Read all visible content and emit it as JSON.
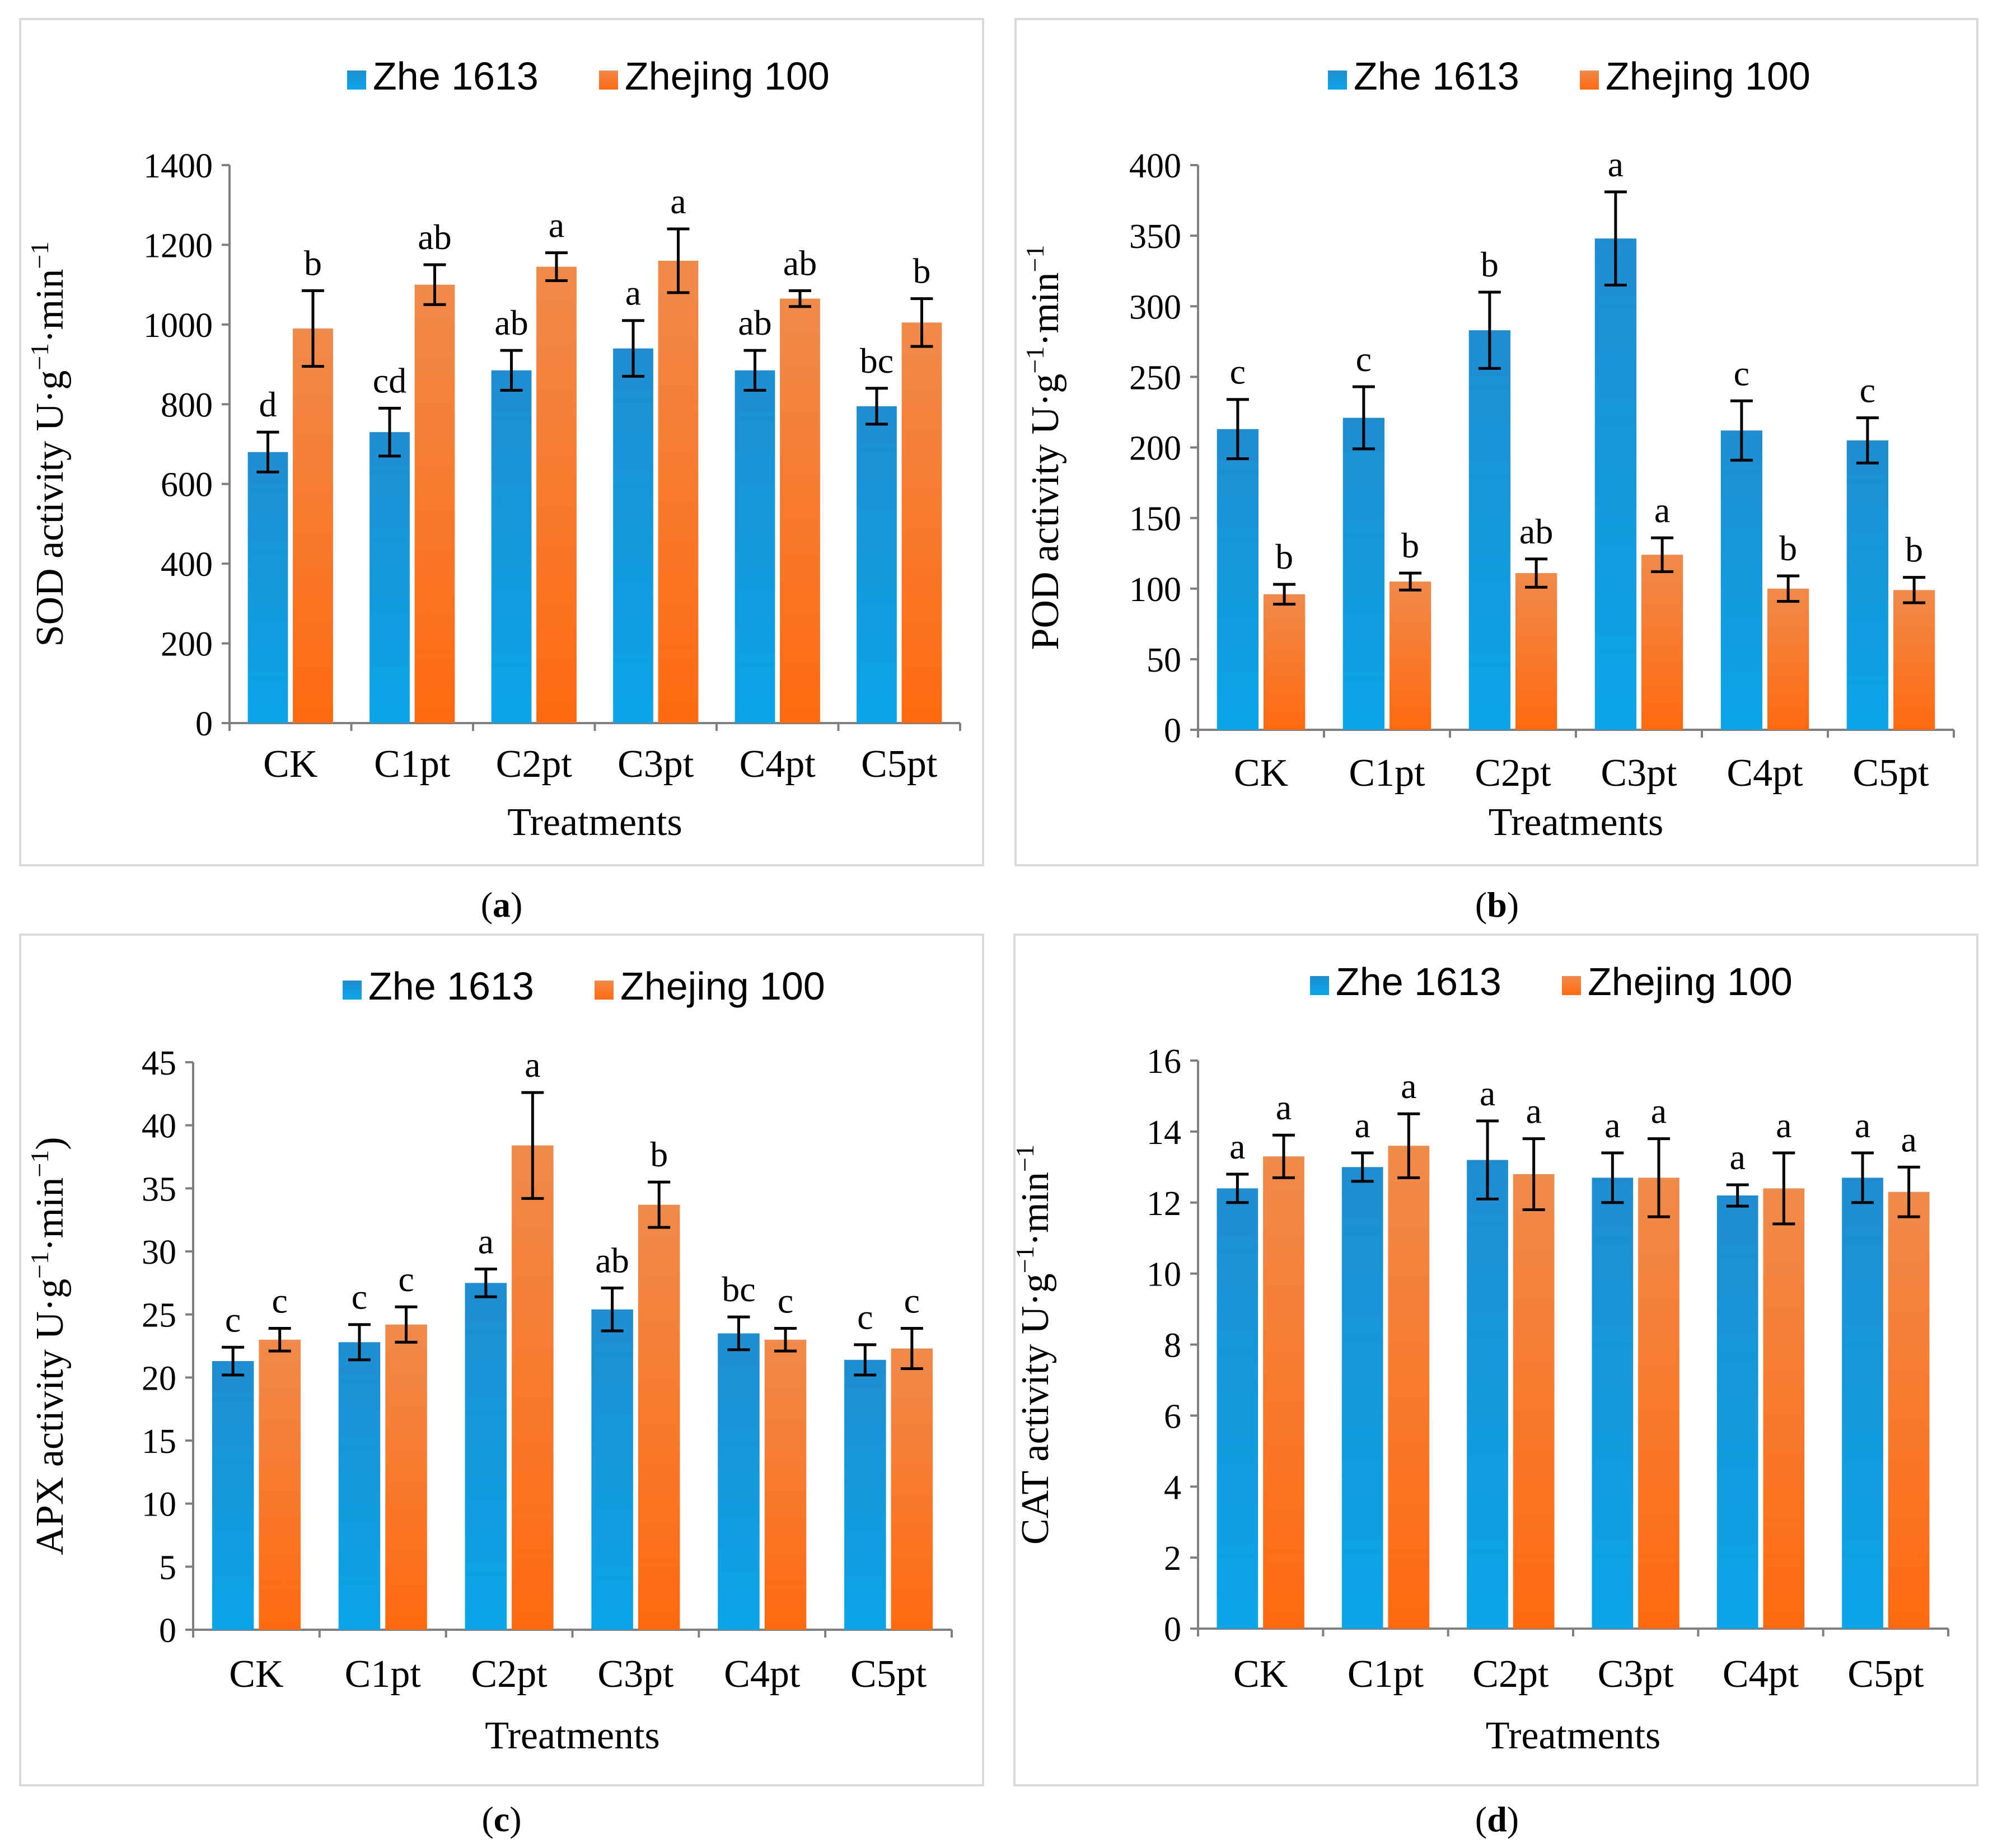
{
  "colors": {
    "series_1": "#1e90d6",
    "series_1_light": "#46b6ee",
    "series_2": "#ff6a1a",
    "series_2_light": "#ffa060",
    "axis": "#7f7f7f",
    "frame": "#d9d9d9"
  },
  "chart_data": [
    {
      "id": "a",
      "type": "bar",
      "panel_label": "a",
      "ylabel_main": "SOD  activity U·g",
      "ylabel_sup1": "−1",
      "ylabel_mid": "·min",
      "ylabel_sup2": "−1",
      "ylabel_end": "",
      "xlabel": "Treatments",
      "categories": [
        "CK",
        "C1pt",
        "C2pt",
        "C3pt",
        "C4pt",
        "C5pt"
      ],
      "ylim": [
        0,
        1400
      ],
      "yticks": [
        0,
        200,
        400,
        600,
        800,
        1000,
        1200,
        1400
      ],
      "legend_position": "top",
      "series": [
        {
          "name": "Zhe 1613",
          "values": [
            680,
            730,
            885,
            940,
            885,
            795
          ],
          "errors": [
            50,
            60,
            50,
            70,
            50,
            45
          ],
          "letters": [
            "d",
            "cd",
            "ab",
            "a",
            "ab",
            "bc"
          ]
        },
        {
          "name": "Zhejing 100",
          "values": [
            990,
            1100,
            1145,
            1160,
            1065,
            1005
          ],
          "errors": [
            95,
            50,
            35,
            80,
            20,
            60
          ],
          "letters": [
            "b",
            "ab",
            "a",
            "a",
            "ab",
            "b"
          ]
        }
      ]
    },
    {
      "id": "b",
      "type": "bar",
      "panel_label": "b",
      "ylabel_main": "POD  activity U·g",
      "ylabel_sup1": "−1",
      "ylabel_mid": "·min",
      "ylabel_sup2": "−1",
      "ylabel_end": "",
      "xlabel": "Treatments",
      "categories": [
        "CK",
        "C1pt",
        "C2pt",
        "C3pt",
        "C4pt",
        "C5pt"
      ],
      "ylim": [
        0,
        400
      ],
      "yticks": [
        0,
        50,
        100,
        150,
        200,
        250,
        300,
        350,
        400
      ],
      "legend_position": "top",
      "series": [
        {
          "name": "Zhe 1613",
          "values": [
            213,
            221,
            283,
            348,
            212,
            205
          ],
          "errors": [
            21,
            22,
            27,
            33,
            21,
            16
          ],
          "letters": [
            "c",
            "c",
            "b",
            "a",
            "c",
            "c"
          ]
        },
        {
          "name": "Zhejing 100",
          "values": [
            96,
            105,
            111,
            124,
            100,
            99
          ],
          "errors": [
            7,
            6,
            10,
            12,
            9,
            9
          ],
          "letters": [
            "b",
            "b",
            "ab",
            "a",
            "b",
            "b"
          ]
        }
      ]
    },
    {
      "id": "c",
      "type": "bar",
      "panel_label": "c",
      "ylabel_main": "APX activity U·g",
      "ylabel_sup1": "−1",
      "ylabel_mid": "·min",
      "ylabel_sup2": "−1",
      "ylabel_end": ")",
      "xlabel": "Treatments",
      "categories": [
        "CK",
        "C1pt",
        "C2pt",
        "C3pt",
        "C4pt",
        "C5pt"
      ],
      "ylim": [
        0,
        45
      ],
      "yticks": [
        0,
        5,
        10,
        15,
        20,
        25,
        30,
        35,
        40,
        45
      ],
      "legend_position": "top",
      "series": [
        {
          "name": "Zhe 1613",
          "values": [
            21.3,
            22.8,
            27.5,
            25.4,
            23.5,
            21.4
          ],
          "errors": [
            1.1,
            1.4,
            1.1,
            1.7,
            1.3,
            1.2
          ],
          "letters": [
            "c",
            "c",
            "a",
            "ab",
            "bc",
            "c"
          ]
        },
        {
          "name": "Zhejing 100",
          "values": [
            23.0,
            24.2,
            38.4,
            33.7,
            23.0,
            22.3
          ],
          "errors": [
            0.9,
            1.4,
            4.2,
            1.8,
            0.9,
            1.6
          ],
          "letters": [
            "c",
            "c",
            "a",
            "b",
            "c",
            "c"
          ]
        }
      ]
    },
    {
      "id": "d",
      "type": "bar",
      "panel_label": "d",
      "ylabel_main": "CAT  activity U·g",
      "ylabel_sup1": "−1",
      "ylabel_mid": "·min",
      "ylabel_sup2": "−1",
      "ylabel_end": "",
      "xlabel": "Treatments",
      "categories": [
        "CK",
        "C1pt",
        "C2pt",
        "C3pt",
        "C4pt",
        "C5pt"
      ],
      "ylim": [
        0,
        16
      ],
      "yticks": [
        0,
        2,
        4,
        6,
        8,
        10,
        12,
        14,
        16
      ],
      "legend_position": "top",
      "series": [
        {
          "name": "Zhe 1613",
          "values": [
            12.4,
            13.0,
            13.2,
            12.7,
            12.2,
            12.7
          ],
          "errors": [
            0.4,
            0.4,
            1.1,
            0.7,
            0.3,
            0.7
          ],
          "letters": [
            "a",
            "a",
            "a",
            "a",
            "a",
            "a"
          ]
        },
        {
          "name": "Zhejing 100",
          "values": [
            13.3,
            13.6,
            12.8,
            12.7,
            12.4,
            12.3
          ],
          "errors": [
            0.6,
            0.9,
            1.0,
            1.1,
            1.0,
            0.7
          ],
          "letters": [
            "a",
            "a",
            "a",
            "a",
            "a",
            "a"
          ]
        }
      ]
    }
  ]
}
